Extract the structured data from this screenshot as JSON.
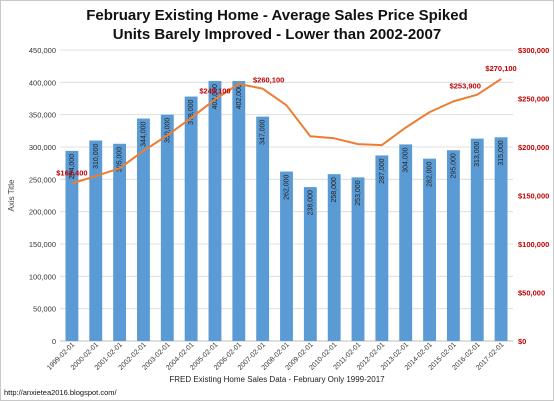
{
  "chart_data": {
    "type": "bar+line",
    "title": "February Existing Home - Average Sales Price Spiked",
    "subtitle": "Units Barely Improved - Lower than 2002-2007",
    "xlabel": "FRED Existing Home Sales Data - February Only 1999-2017",
    "ylabel": "Axis Title",
    "source": "http://anxietea2016.blogspot.com/",
    "categories": [
      "1999-02-01",
      "2000-02-01",
      "2001-02-01",
      "2002-02-01",
      "2003-02-01",
      "2004-02-01",
      "2005-02-01",
      "2006-02-01",
      "2007-02-01",
      "2008-02-01",
      "2009-02-01",
      "2010-02-01",
      "2011-02-01",
      "2012-02-01",
      "2013-02-01",
      "2014-02-01",
      "2015-02-01",
      "2016-02-01",
      "2017-02-01"
    ],
    "bar_series": {
      "axis": "left",
      "color": "#5b9bd5",
      "values": [
        294000,
        310000,
        305000,
        344000,
        350000,
        378000,
        402000,
        402000,
        347000,
        262000,
        238000,
        258000,
        253000,
        287000,
        304000,
        282000,
        295000,
        313000,
        315000
      ],
      "labels": [
        "294,000",
        "310,000",
        "305,000",
        "344,000",
        "350,000",
        "378,000",
        "402,000",
        "402,000",
        "347,000",
        "262,000",
        "238,000",
        "258,000",
        "253,000",
        "287,000",
        "304,000",
        "282,000",
        "295,000",
        "313,000",
        "315,000"
      ]
    },
    "line_series": {
      "axis": "right",
      "color": "#ed7d31",
      "values": [
        162400,
        170000,
        178000,
        196000,
        212000,
        230000,
        249100,
        265000,
        260100,
        243000,
        211000,
        209000,
        203000,
        202000,
        220000,
        236000,
        247000,
        253900,
        270100
      ]
    },
    "line_annotations": [
      {
        "index": 0,
        "text": "$162,400"
      },
      {
        "index": 6,
        "text": "$249,100"
      },
      {
        "index": 8,
        "text": "$260,100"
      },
      {
        "index": 17,
        "text": "$253,900"
      },
      {
        "index": 18,
        "text": "$270,100"
      }
    ],
    "left_axis": {
      "ylim": [
        0,
        450000
      ],
      "ticks": [
        "0",
        "50,000",
        "100,000",
        "150,000",
        "200,000",
        "250,000",
        "300,000",
        "350,000",
        "400,000",
        "450,000"
      ]
    },
    "right_axis": {
      "ylim": [
        0,
        300000
      ],
      "ticks": [
        "$0",
        "$50,000",
        "$100,000",
        "$150,000",
        "$200,000",
        "$250,000",
        "$300,000"
      ],
      "color": "#c00000"
    },
    "grid": true,
    "annotation_color": "#c00000"
  }
}
